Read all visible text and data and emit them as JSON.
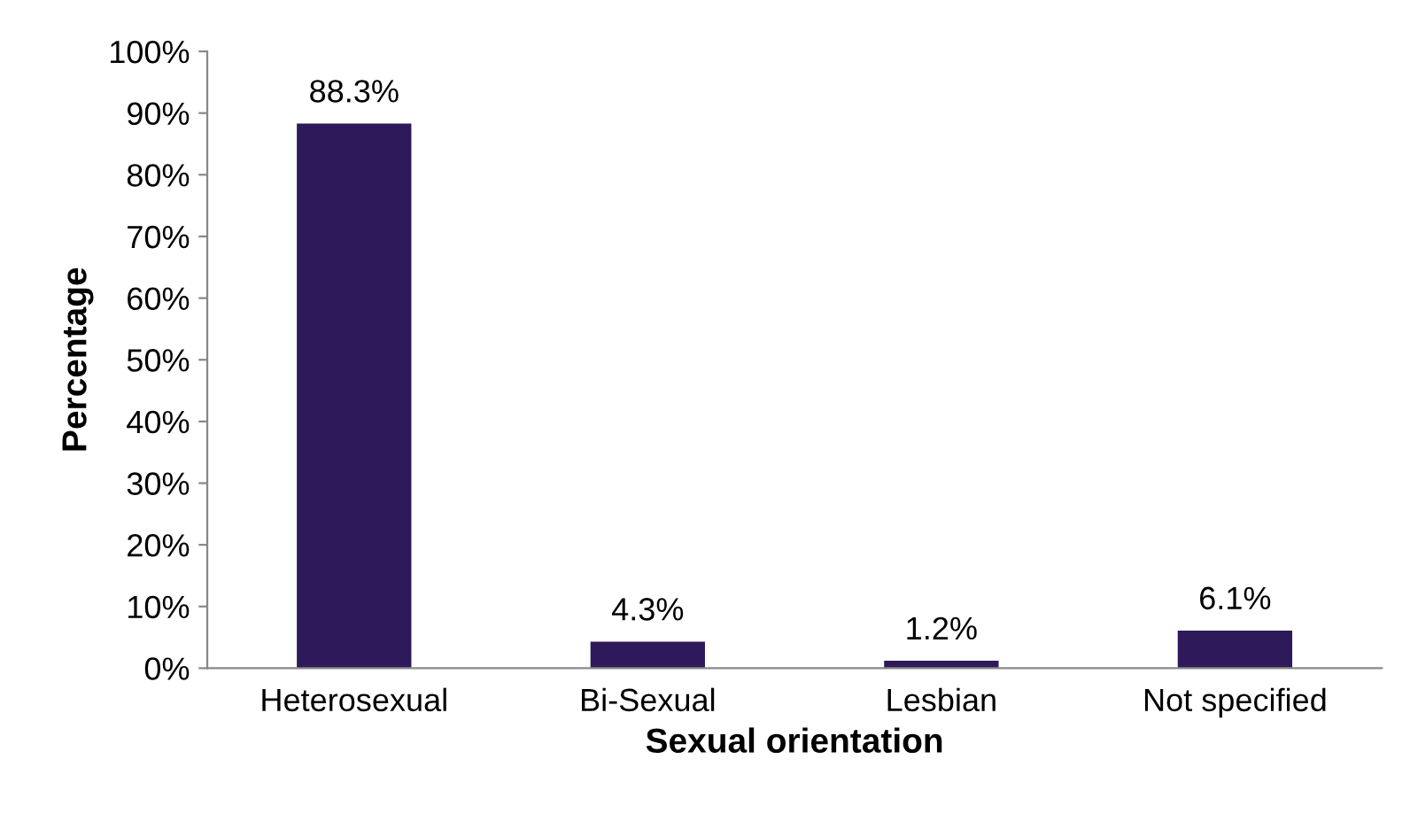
{
  "chart_data": {
    "type": "bar",
    "xlabel": "Sexual orientation",
    "ylabel": "Percentage",
    "categories": [
      "Heterosexual",
      "Bi-Sexual",
      "Lesbian",
      "Not specified"
    ],
    "values": [
      88.3,
      4.3,
      1.2,
      6.1
    ],
    "value_labels": [
      "88.3%",
      "4.3%",
      "1.2%",
      "6.1%"
    ],
    "color": "#2e1a5a",
    "ylim": [
      0,
      100
    ],
    "yticks": [
      {
        "value": 0,
        "label": "0%"
      },
      {
        "value": 10,
        "label": "10%"
      },
      {
        "value": 20,
        "label": "20%"
      },
      {
        "value": 30,
        "label": "30%"
      },
      {
        "value": 40,
        "label": "40%"
      },
      {
        "value": 50,
        "label": "50%"
      },
      {
        "value": 60,
        "label": "60%"
      },
      {
        "value": 70,
        "label": "70%"
      },
      {
        "value": 80,
        "label": "80%"
      },
      {
        "value": 90,
        "label": "90%"
      },
      {
        "value": 100,
        "label": "100%"
      }
    ],
    "grid": false,
    "legend": false
  }
}
